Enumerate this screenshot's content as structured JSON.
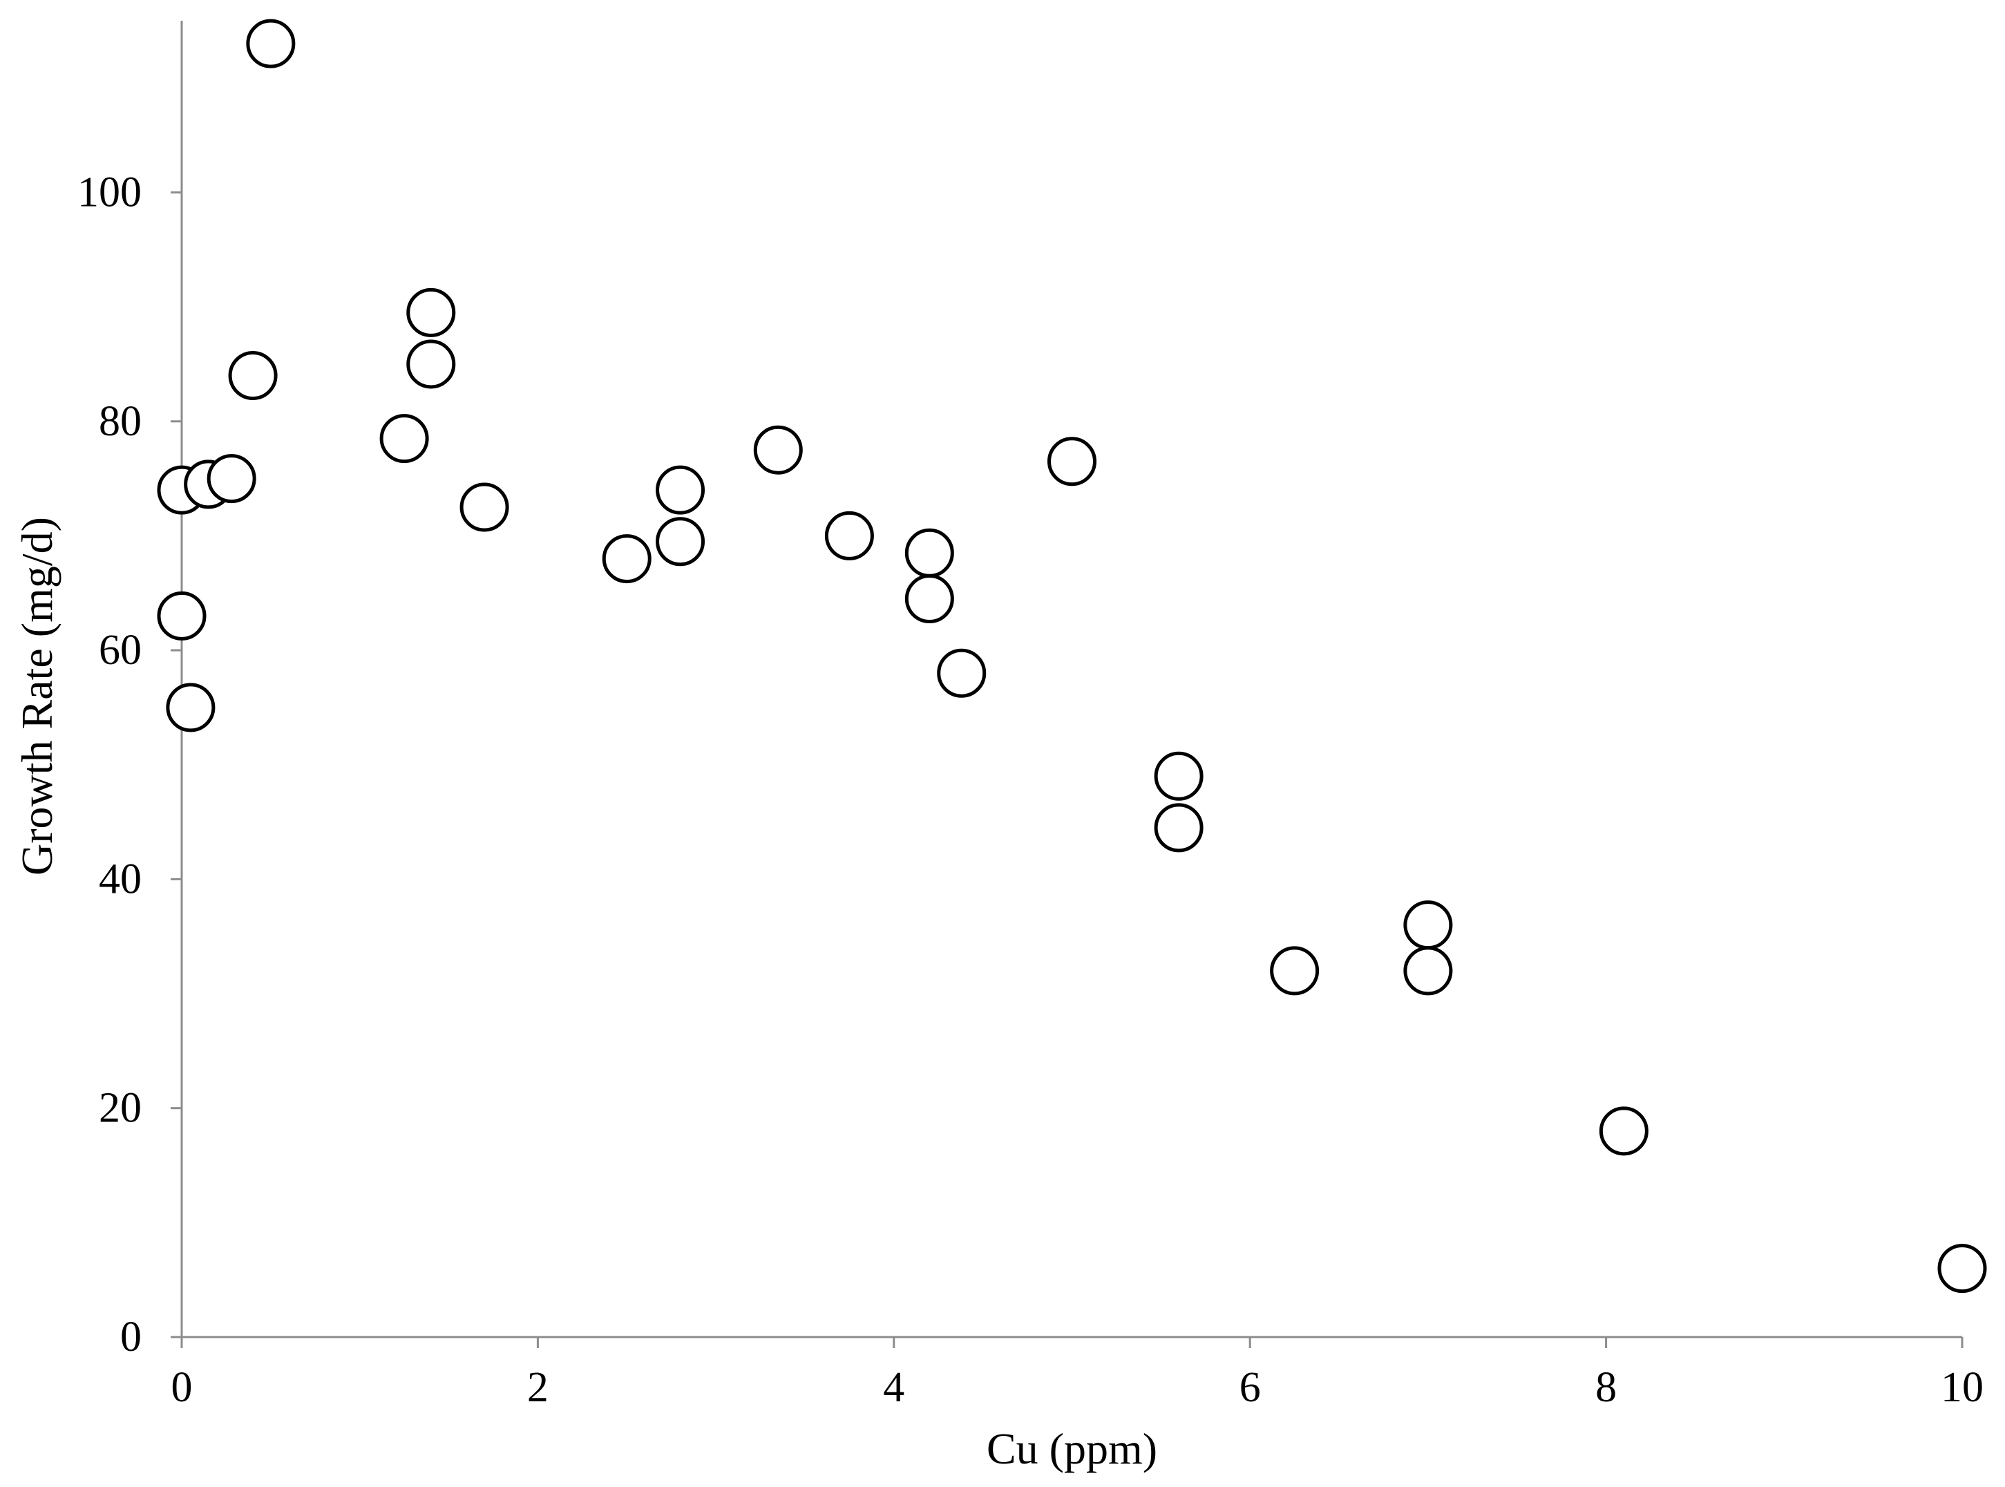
{
  "chart_data": {
    "type": "scatter",
    "xlabel": "Cu (ppm)",
    "ylabel": "Growth Rate (mg/d)",
    "xlim": [
      0,
      10
    ],
    "ylim": [
      0,
      115
    ],
    "x_ticks": [
      0,
      2,
      4,
      6,
      8,
      10
    ],
    "y_ticks": [
      0,
      20,
      40,
      60,
      80,
      100
    ],
    "grid": false,
    "marker": "open-circle",
    "colors": {
      "marker_stroke": "#000000",
      "marker_fill": "#ffffff",
      "axis": "#8c8c8c",
      "text": "#000000"
    },
    "series": [
      {
        "points": [
          {
            "x": 0.5,
            "y": 113.0
          },
          {
            "x": 0.4,
            "y": 84.0
          },
          {
            "x": 0.0,
            "y": 74.0
          },
          {
            "x": 0.15,
            "y": 74.5
          },
          {
            "x": 0.28,
            "y": 75.0
          },
          {
            "x": 0.0,
            "y": 63.0
          },
          {
            "x": 0.05,
            "y": 55.0
          },
          {
            "x": 1.25,
            "y": 78.5
          },
          {
            "x": 1.4,
            "y": 89.5
          },
          {
            "x": 1.4,
            "y": 85.0
          },
          {
            "x": 1.7,
            "y": 72.5
          },
          {
            "x": 2.5,
            "y": 68.0
          },
          {
            "x": 2.8,
            "y": 74.0
          },
          {
            "x": 2.8,
            "y": 69.5
          },
          {
            "x": 3.35,
            "y": 77.5
          },
          {
            "x": 3.75,
            "y": 70.0
          },
          {
            "x": 4.2,
            "y": 68.5
          },
          {
            "x": 4.2,
            "y": 64.5
          },
          {
            "x": 4.38,
            "y": 58.0
          },
          {
            "x": 5.0,
            "y": 76.5
          },
          {
            "x": 5.6,
            "y": 49.0
          },
          {
            "x": 5.6,
            "y": 44.5
          },
          {
            "x": 6.25,
            "y": 32.0
          },
          {
            "x": 7.0,
            "y": 36.0
          },
          {
            "x": 7.0,
            "y": 32.0
          },
          {
            "x": 8.1,
            "y": 18.0
          },
          {
            "x": 10.0,
            "y": 6.0
          }
        ]
      }
    ]
  }
}
